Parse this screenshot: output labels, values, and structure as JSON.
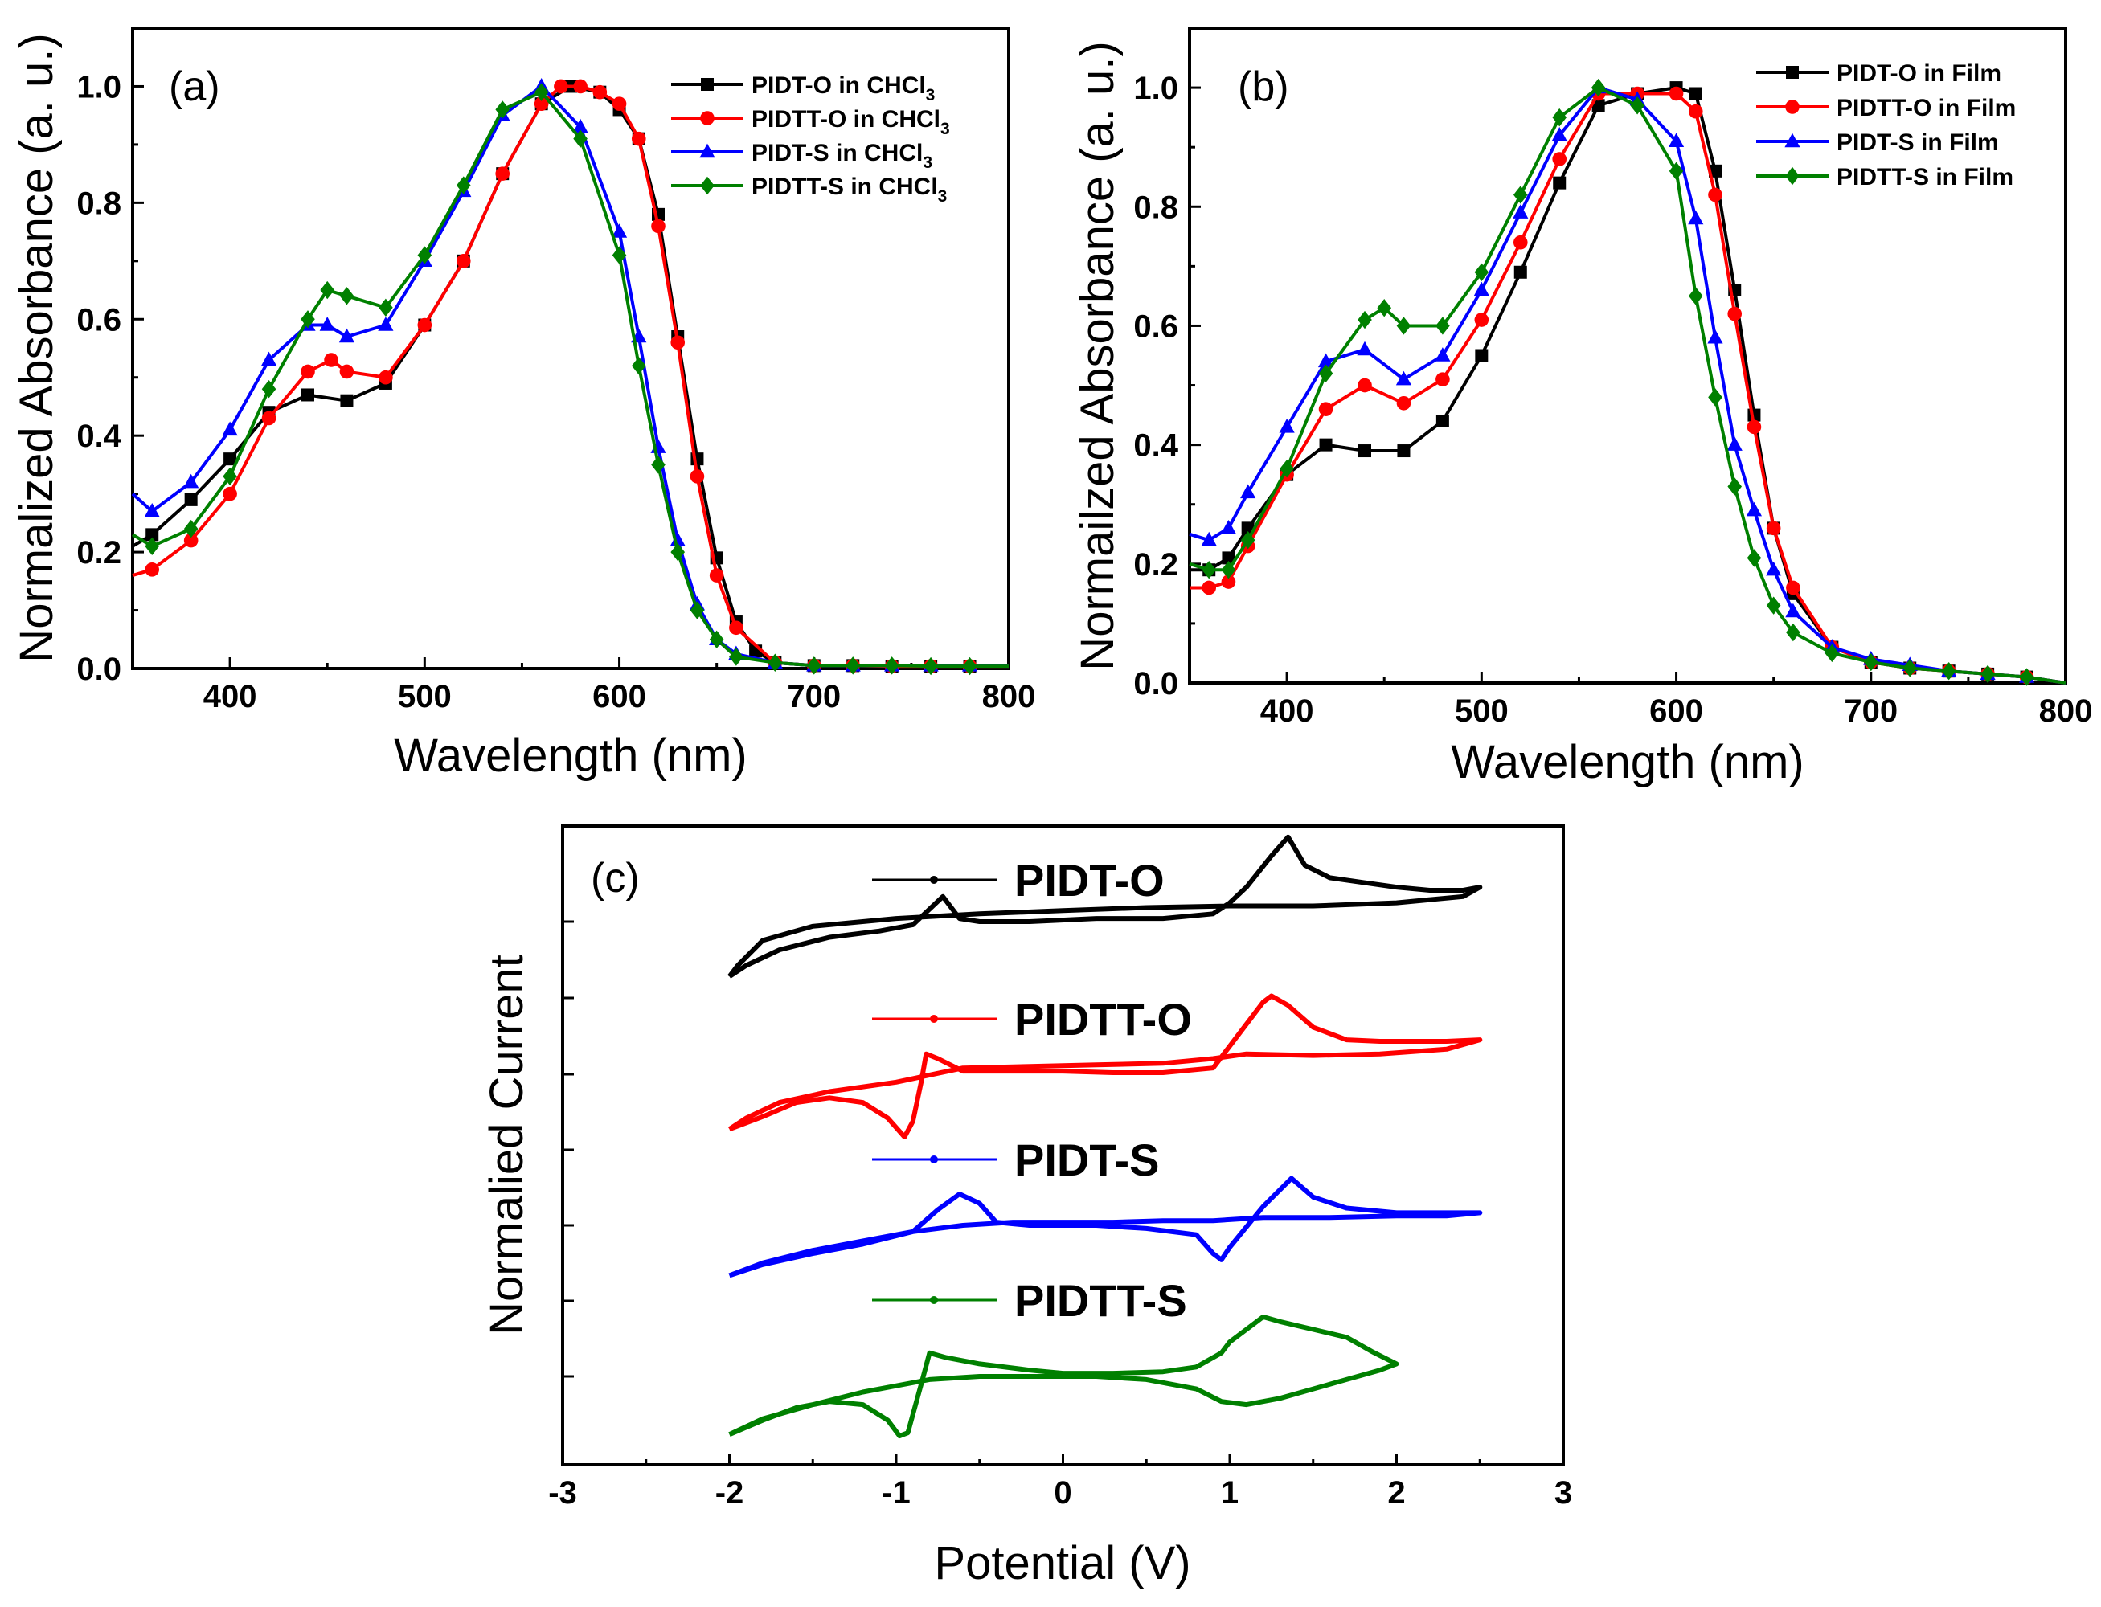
{
  "chart_data": [
    {
      "panel_label": "(a)",
      "type": "line",
      "xlabel": "Wavelength (nm)",
      "ylabel": "Normalized Absorbance (a. u.)",
      "xlim": [
        350,
        800
      ],
      "ylim": [
        0.0,
        1.1
      ],
      "xticks": [
        "400",
        "500",
        "600",
        "700",
        "800"
      ],
      "yticks": [
        "0.0",
        "0.2",
        "0.4",
        "0.6",
        "0.8",
        "1.0"
      ],
      "legend_position": "top-right",
      "series": [
        {
          "name": "PIDT-O in CHCl3",
          "legend_main": "PIDT-O in CHCl",
          "legend_sub": "3",
          "color": "#000000",
          "marker": "square",
          "x": [
            350,
            360,
            380,
            400,
            420,
            440,
            460,
            480,
            500,
            520,
            540,
            560,
            575,
            590,
            600,
            610,
            620,
            630,
            640,
            650,
            660,
            670,
            680,
            700,
            720,
            740,
            760,
            780,
            800
          ],
          "y": [
            0.21,
            0.23,
            0.29,
            0.36,
            0.44,
            0.47,
            0.46,
            0.49,
            0.59,
            0.7,
            0.85,
            0.97,
            1.0,
            0.99,
            0.96,
            0.91,
            0.78,
            0.57,
            0.36,
            0.19,
            0.08,
            0.03,
            0.01,
            0.005,
            0.005,
            0.004,
            0.004,
            0.004,
            0.004
          ]
        },
        {
          "name": "PIDTT-O in CHCl3",
          "legend_main": "PIDTT-O in CHCl",
          "legend_sub": "3",
          "color": "#ff0000",
          "marker": "circle",
          "x": [
            350,
            360,
            380,
            400,
            420,
            440,
            452,
            460,
            480,
            500,
            520,
            540,
            560,
            570,
            580,
            590,
            600,
            610,
            620,
            630,
            640,
            650,
            660,
            680,
            700,
            720,
            740,
            760,
            780,
            800
          ],
          "y": [
            0.16,
            0.17,
            0.22,
            0.3,
            0.43,
            0.51,
            0.53,
            0.51,
            0.5,
            0.59,
            0.7,
            0.85,
            0.97,
            1.0,
            1.0,
            0.99,
            0.97,
            0.91,
            0.76,
            0.56,
            0.33,
            0.16,
            0.07,
            0.01,
            0.005,
            0.005,
            0.004,
            0.004,
            0.004,
            0.004
          ]
        },
        {
          "name": "PIDT-S in CHCl3",
          "legend_main": "PIDT-S in CHCl",
          "legend_sub": "3",
          "color": "#0000ff",
          "marker": "triangle",
          "x": [
            350,
            360,
            380,
            400,
            420,
            440,
            450,
            460,
            480,
            500,
            520,
            540,
            560,
            580,
            600,
            610,
            620,
            630,
            640,
            650,
            660,
            680,
            700,
            720,
            740,
            760,
            780,
            800
          ],
          "y": [
            0.3,
            0.27,
            0.32,
            0.41,
            0.53,
            0.59,
            0.59,
            0.57,
            0.59,
            0.7,
            0.82,
            0.95,
            1.0,
            0.93,
            0.75,
            0.57,
            0.38,
            0.22,
            0.11,
            0.05,
            0.025,
            0.01,
            0.005,
            0.005,
            0.005,
            0.005,
            0.005,
            0.004
          ]
        },
        {
          "name": "PIDTT-S in CHCl3",
          "legend_main": "PIDTT-S in CHCl",
          "legend_sub": "3",
          "color": "#008000",
          "marker": "diamond",
          "x": [
            350,
            360,
            380,
            400,
            420,
            440,
            450,
            460,
            480,
            500,
            520,
            540,
            560,
            580,
            600,
            610,
            620,
            630,
            640,
            650,
            660,
            680,
            700,
            720,
            740,
            760,
            780,
            800
          ],
          "y": [
            0.23,
            0.21,
            0.24,
            0.33,
            0.48,
            0.6,
            0.65,
            0.64,
            0.62,
            0.71,
            0.83,
            0.96,
            0.99,
            0.91,
            0.71,
            0.52,
            0.35,
            0.2,
            0.1,
            0.05,
            0.02,
            0.01,
            0.005,
            0.005,
            0.005,
            0.004,
            0.004,
            0.004
          ]
        }
      ]
    },
    {
      "panel_label": "(b)",
      "type": "line",
      "xlabel": "Wavelength (nm)",
      "ylabel": "Normailzed Absorbance (a. u.)",
      "xlim": [
        350,
        800
      ],
      "ylim": [
        0.0,
        1.1
      ],
      "xticks": [
        "400",
        "500",
        "600",
        "700",
        "800"
      ],
      "yticks": [
        "0.0",
        "0.2",
        "0.4",
        "0.6",
        "0.8",
        "1.0"
      ],
      "legend_position": "top-right",
      "series": [
        {
          "name": "PIDT-O in Film",
          "legend_main": "PIDT-O in Film",
          "legend_sub": "",
          "color": "#000000",
          "marker": "square",
          "x": [
            350,
            360,
            370,
            380,
            400,
            420,
            440,
            460,
            480,
            500,
            520,
            540,
            560,
            580,
            600,
            610,
            620,
            630,
            640,
            650,
            660,
            680,
            700,
            720,
            740,
            760,
            780,
            800
          ],
          "y": [
            0.19,
            0.19,
            0.21,
            0.26,
            0.35,
            0.4,
            0.39,
            0.39,
            0.44,
            0.55,
            0.69,
            0.84,
            0.97,
            0.99,
            1.0,
            0.99,
            0.86,
            0.66,
            0.45,
            0.26,
            0.15,
            0.06,
            0.035,
            0.025,
            0.02,
            0.015,
            0.01,
            0.0
          ]
        },
        {
          "name": "PIDTT-O in Film",
          "legend_main": "PIDTT-O in Film",
          "legend_sub": "",
          "color": "#ff0000",
          "marker": "circle",
          "x": [
            350,
            360,
            370,
            380,
            400,
            420,
            440,
            460,
            480,
            500,
            520,
            540,
            560,
            580,
            600,
            610,
            620,
            630,
            640,
            650,
            660,
            680,
            700,
            720,
            740,
            760,
            780,
            800
          ],
          "y": [
            0.16,
            0.16,
            0.17,
            0.23,
            0.35,
            0.46,
            0.5,
            0.47,
            0.51,
            0.61,
            0.74,
            0.88,
            0.99,
            0.99,
            0.99,
            0.96,
            0.82,
            0.62,
            0.43,
            0.26,
            0.16,
            0.06,
            0.035,
            0.025,
            0.02,
            0.015,
            0.01,
            0.0
          ]
        },
        {
          "name": "PIDT-S in Film",
          "legend_main": "PIDT-S in Film",
          "legend_sub": "",
          "color": "#0000ff",
          "marker": "triangle",
          "x": [
            350,
            360,
            370,
            380,
            400,
            420,
            440,
            460,
            480,
            500,
            520,
            540,
            560,
            580,
            600,
            610,
            620,
            630,
            640,
            650,
            660,
            680,
            700,
            720,
            740,
            760,
            780,
            800
          ],
          "y": [
            0.25,
            0.24,
            0.26,
            0.32,
            0.43,
            0.54,
            0.56,
            0.51,
            0.55,
            0.66,
            0.79,
            0.92,
            1.0,
            0.98,
            0.91,
            0.78,
            0.58,
            0.4,
            0.29,
            0.19,
            0.12,
            0.06,
            0.04,
            0.03,
            0.02,
            0.015,
            0.01,
            0.0
          ]
        },
        {
          "name": "PIDTT-S in Film",
          "legend_main": "PIDTT-S in Film",
          "legend_sub": "",
          "color": "#008000",
          "marker": "diamond",
          "x": [
            350,
            360,
            370,
            380,
            400,
            420,
            440,
            450,
            460,
            480,
            500,
            520,
            540,
            560,
            580,
            600,
            610,
            620,
            630,
            640,
            650,
            660,
            680,
            700,
            720,
            740,
            760,
            780,
            800
          ],
          "y": [
            0.2,
            0.19,
            0.19,
            0.24,
            0.36,
            0.52,
            0.61,
            0.63,
            0.6,
            0.6,
            0.69,
            0.82,
            0.95,
            1.0,
            0.97,
            0.86,
            0.65,
            0.48,
            0.33,
            0.21,
            0.13,
            0.085,
            0.05,
            0.035,
            0.025,
            0.02,
            0.015,
            0.01,
            0.0
          ]
        }
      ]
    },
    {
      "panel_label": "(c)",
      "type": "line",
      "xlabel": "Potential (V)",
      "ylabel": "Normalied Current",
      "xlim": [
        -3,
        3
      ],
      "xticks": [
        "-3",
        "-2",
        "-1",
        "0",
        "1",
        "2",
        "3"
      ],
      "legend_position": "top-center",
      "series": [
        {
          "name": "PIDT-O",
          "color": "#000000",
          "x": [
            -2.0,
            -1.9,
            -1.7,
            -1.4,
            -1.1,
            -0.9,
            -0.8,
            -0.72,
            -0.62,
            -0.5,
            -0.2,
            0.2,
            0.6,
            0.9,
            1.0,
            1.1,
            1.25,
            1.35,
            1.45,
            1.6,
            1.8,
            2.0,
            2.2,
            2.4,
            2.5,
            2.4,
            2.0,
            1.5,
            1.0,
            0.5,
            0.0,
            -0.5,
            -1.0,
            -1.5,
            -1.8,
            -1.95,
            -2.0
          ],
          "y": [
            -0.35,
            -0.28,
            -0.18,
            -0.1,
            -0.06,
            -0.02,
            0.08,
            0.16,
            0.02,
            0.0,
            0.0,
            0.02,
            0.02,
            0.05,
            0.12,
            0.22,
            0.42,
            0.54,
            0.36,
            0.28,
            0.25,
            0.22,
            0.2,
            0.2,
            0.22,
            0.16,
            0.12,
            0.1,
            0.1,
            0.09,
            0.07,
            0.05,
            0.02,
            -0.03,
            -0.12,
            -0.28,
            -0.35
          ]
        },
        {
          "name": "PIDTT-O",
          "color": "#ff0000",
          "x": [
            -2.0,
            -1.8,
            -1.6,
            -1.4,
            -1.2,
            -1.05,
            -0.95,
            -0.9,
            -0.85,
            -0.82,
            -0.75,
            -0.6,
            -0.3,
            0.0,
            0.3,
            0.6,
            0.9,
            1.0,
            1.1,
            1.2,
            1.25,
            1.35,
            1.5,
            1.7,
            1.9,
            2.1,
            2.3,
            2.5,
            2.3,
            1.9,
            1.5,
            1.1,
            0.9,
            0.6,
            0.2,
            -0.2,
            -0.6,
            -1.0,
            -1.4,
            -1.7,
            -1.9,
            -2.0
          ],
          "y": [
            -0.35,
            -0.27,
            -0.18,
            -0.15,
            -0.18,
            -0.28,
            -0.4,
            -0.3,
            -0.05,
            0.13,
            0.1,
            0.02,
            0.02,
            0.02,
            0.01,
            0.01,
            0.04,
            0.18,
            0.32,
            0.46,
            0.5,
            0.44,
            0.3,
            0.22,
            0.21,
            0.21,
            0.21,
            0.22,
            0.16,
            0.13,
            0.12,
            0.13,
            0.1,
            0.07,
            0.06,
            0.05,
            0.04,
            -0.05,
            -0.11,
            -0.18,
            -0.28,
            -0.35
          ]
        },
        {
          "name": "PIDT-S",
          "color": "#0000ff",
          "x": [
            -2.0,
            -1.8,
            -1.5,
            -1.2,
            -0.9,
            -0.75,
            -0.62,
            -0.5,
            -0.4,
            -0.2,
            0.0,
            0.2,
            0.5,
            0.8,
            0.9,
            0.95,
            1.0,
            1.2,
            1.37,
            1.5,
            1.7,
            2.0,
            2.3,
            2.5,
            2.3,
            2.0,
            1.6,
            1.2,
            0.9,
            0.6,
            0.3,
            0.0,
            -0.3,
            -0.6,
            -0.9,
            -1.2,
            -1.5,
            -1.8,
            -2.0
          ],
          "y": [
            -0.32,
            -0.25,
            -0.18,
            -0.12,
            -0.04,
            0.1,
            0.2,
            0.14,
            0.02,
            0.0,
            0.0,
            0.0,
            -0.02,
            -0.06,
            -0.18,
            -0.22,
            -0.14,
            0.12,
            0.3,
            0.18,
            0.11,
            0.08,
            0.08,
            0.08,
            0.06,
            0.06,
            0.05,
            0.05,
            0.03,
            0.03,
            0.02,
            0.02,
            0.02,
            0.0,
            -0.04,
            -0.1,
            -0.16,
            -0.24,
            -0.32
          ]
        },
        {
          "name": "PIDTT-S",
          "color": "#008000",
          "x": [
            -2.0,
            -1.8,
            -1.6,
            -1.4,
            -1.2,
            -1.05,
            -0.98,
            -0.93,
            -0.85,
            -0.8,
            -0.7,
            -0.5,
            -0.2,
            0.0,
            0.3,
            0.6,
            0.8,
            0.95,
            1.0,
            1.1,
            1.2,
            1.3,
            1.5,
            1.7,
            1.85,
            2.0,
            1.9,
            1.7,
            1.5,
            1.3,
            1.1,
            0.95,
            0.8,
            0.5,
            0.2,
            -0.2,
            -0.5,
            -0.8,
            -1.2,
            -1.5,
            -1.8,
            -2.0
          ],
          "y": [
            -0.37,
            -0.28,
            -0.2,
            -0.16,
            -0.18,
            -0.28,
            -0.38,
            -0.36,
            -0.05,
            0.15,
            0.12,
            0.08,
            0.04,
            0.02,
            0.02,
            0.03,
            0.06,
            0.15,
            0.22,
            0.3,
            0.38,
            0.35,
            0.3,
            0.25,
            0.16,
            0.08,
            0.04,
            -0.02,
            -0.08,
            -0.14,
            -0.18,
            -0.16,
            -0.08,
            -0.02,
            0.0,
            0.0,
            0.0,
            -0.02,
            -0.1,
            -0.18,
            -0.27,
            -0.37
          ]
        }
      ]
    }
  ]
}
